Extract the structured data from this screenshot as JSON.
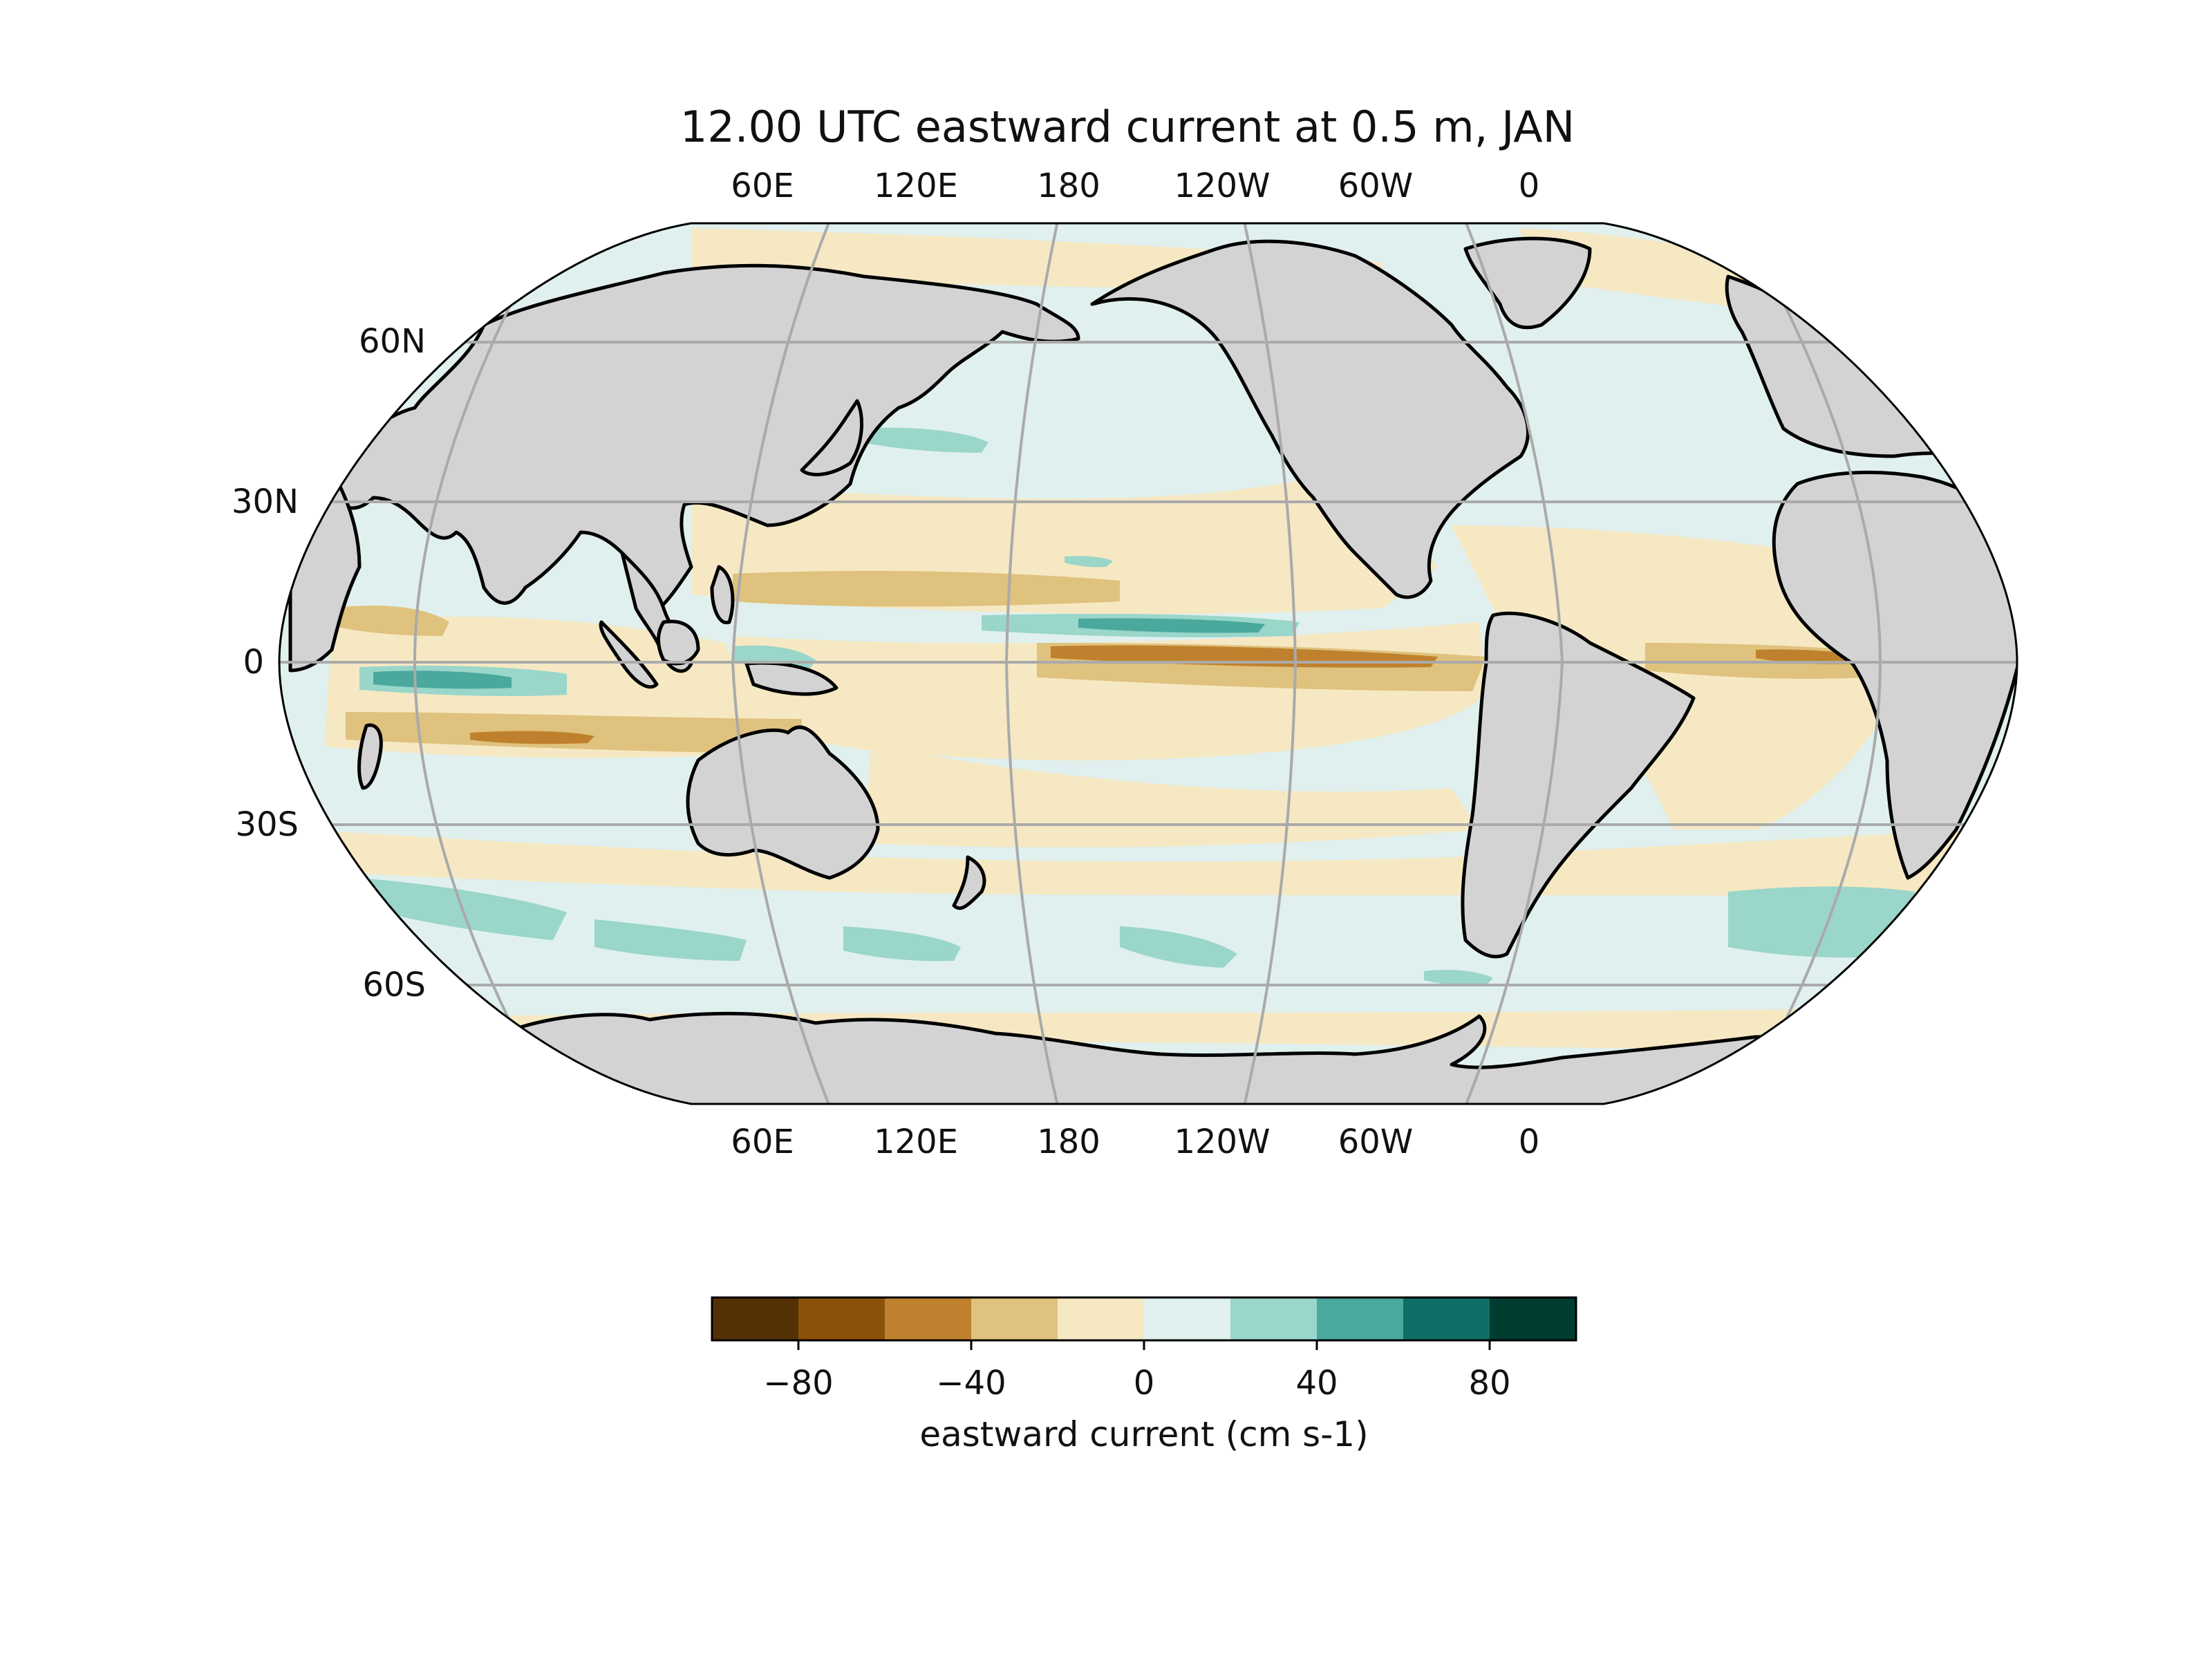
{
  "figure": {
    "title": "12.00 UTC eastward current at 0.5 m, JAN"
  },
  "map": {
    "lon_labels_top": [
      "60E",
      "120E",
      "180",
      "120W",
      "60W",
      "0"
    ],
    "lon_labels_bottom": [
      "60E",
      "120E",
      "180",
      "120W",
      "60W",
      "0"
    ],
    "lat_labels": [
      "60N",
      "30N",
      "0",
      "30S",
      "60S"
    ],
    "land_color": "#d3d3d3",
    "coast_color": "#000000",
    "grid_color": "#aaaaaa"
  },
  "colorbar": {
    "label": "eastward current (cm s-1)",
    "ticks": [
      "−80",
      "−40",
      "0",
      "40",
      "80"
    ],
    "colors": [
      "#543005",
      "#8c510a",
      "#bf812d",
      "#dfc27d",
      "#f6e8c3",
      "#e0f0ee",
      "#9ad6ca",
      "#4aa89c",
      "#0f6f66",
      "#003c30"
    ]
  }
}
